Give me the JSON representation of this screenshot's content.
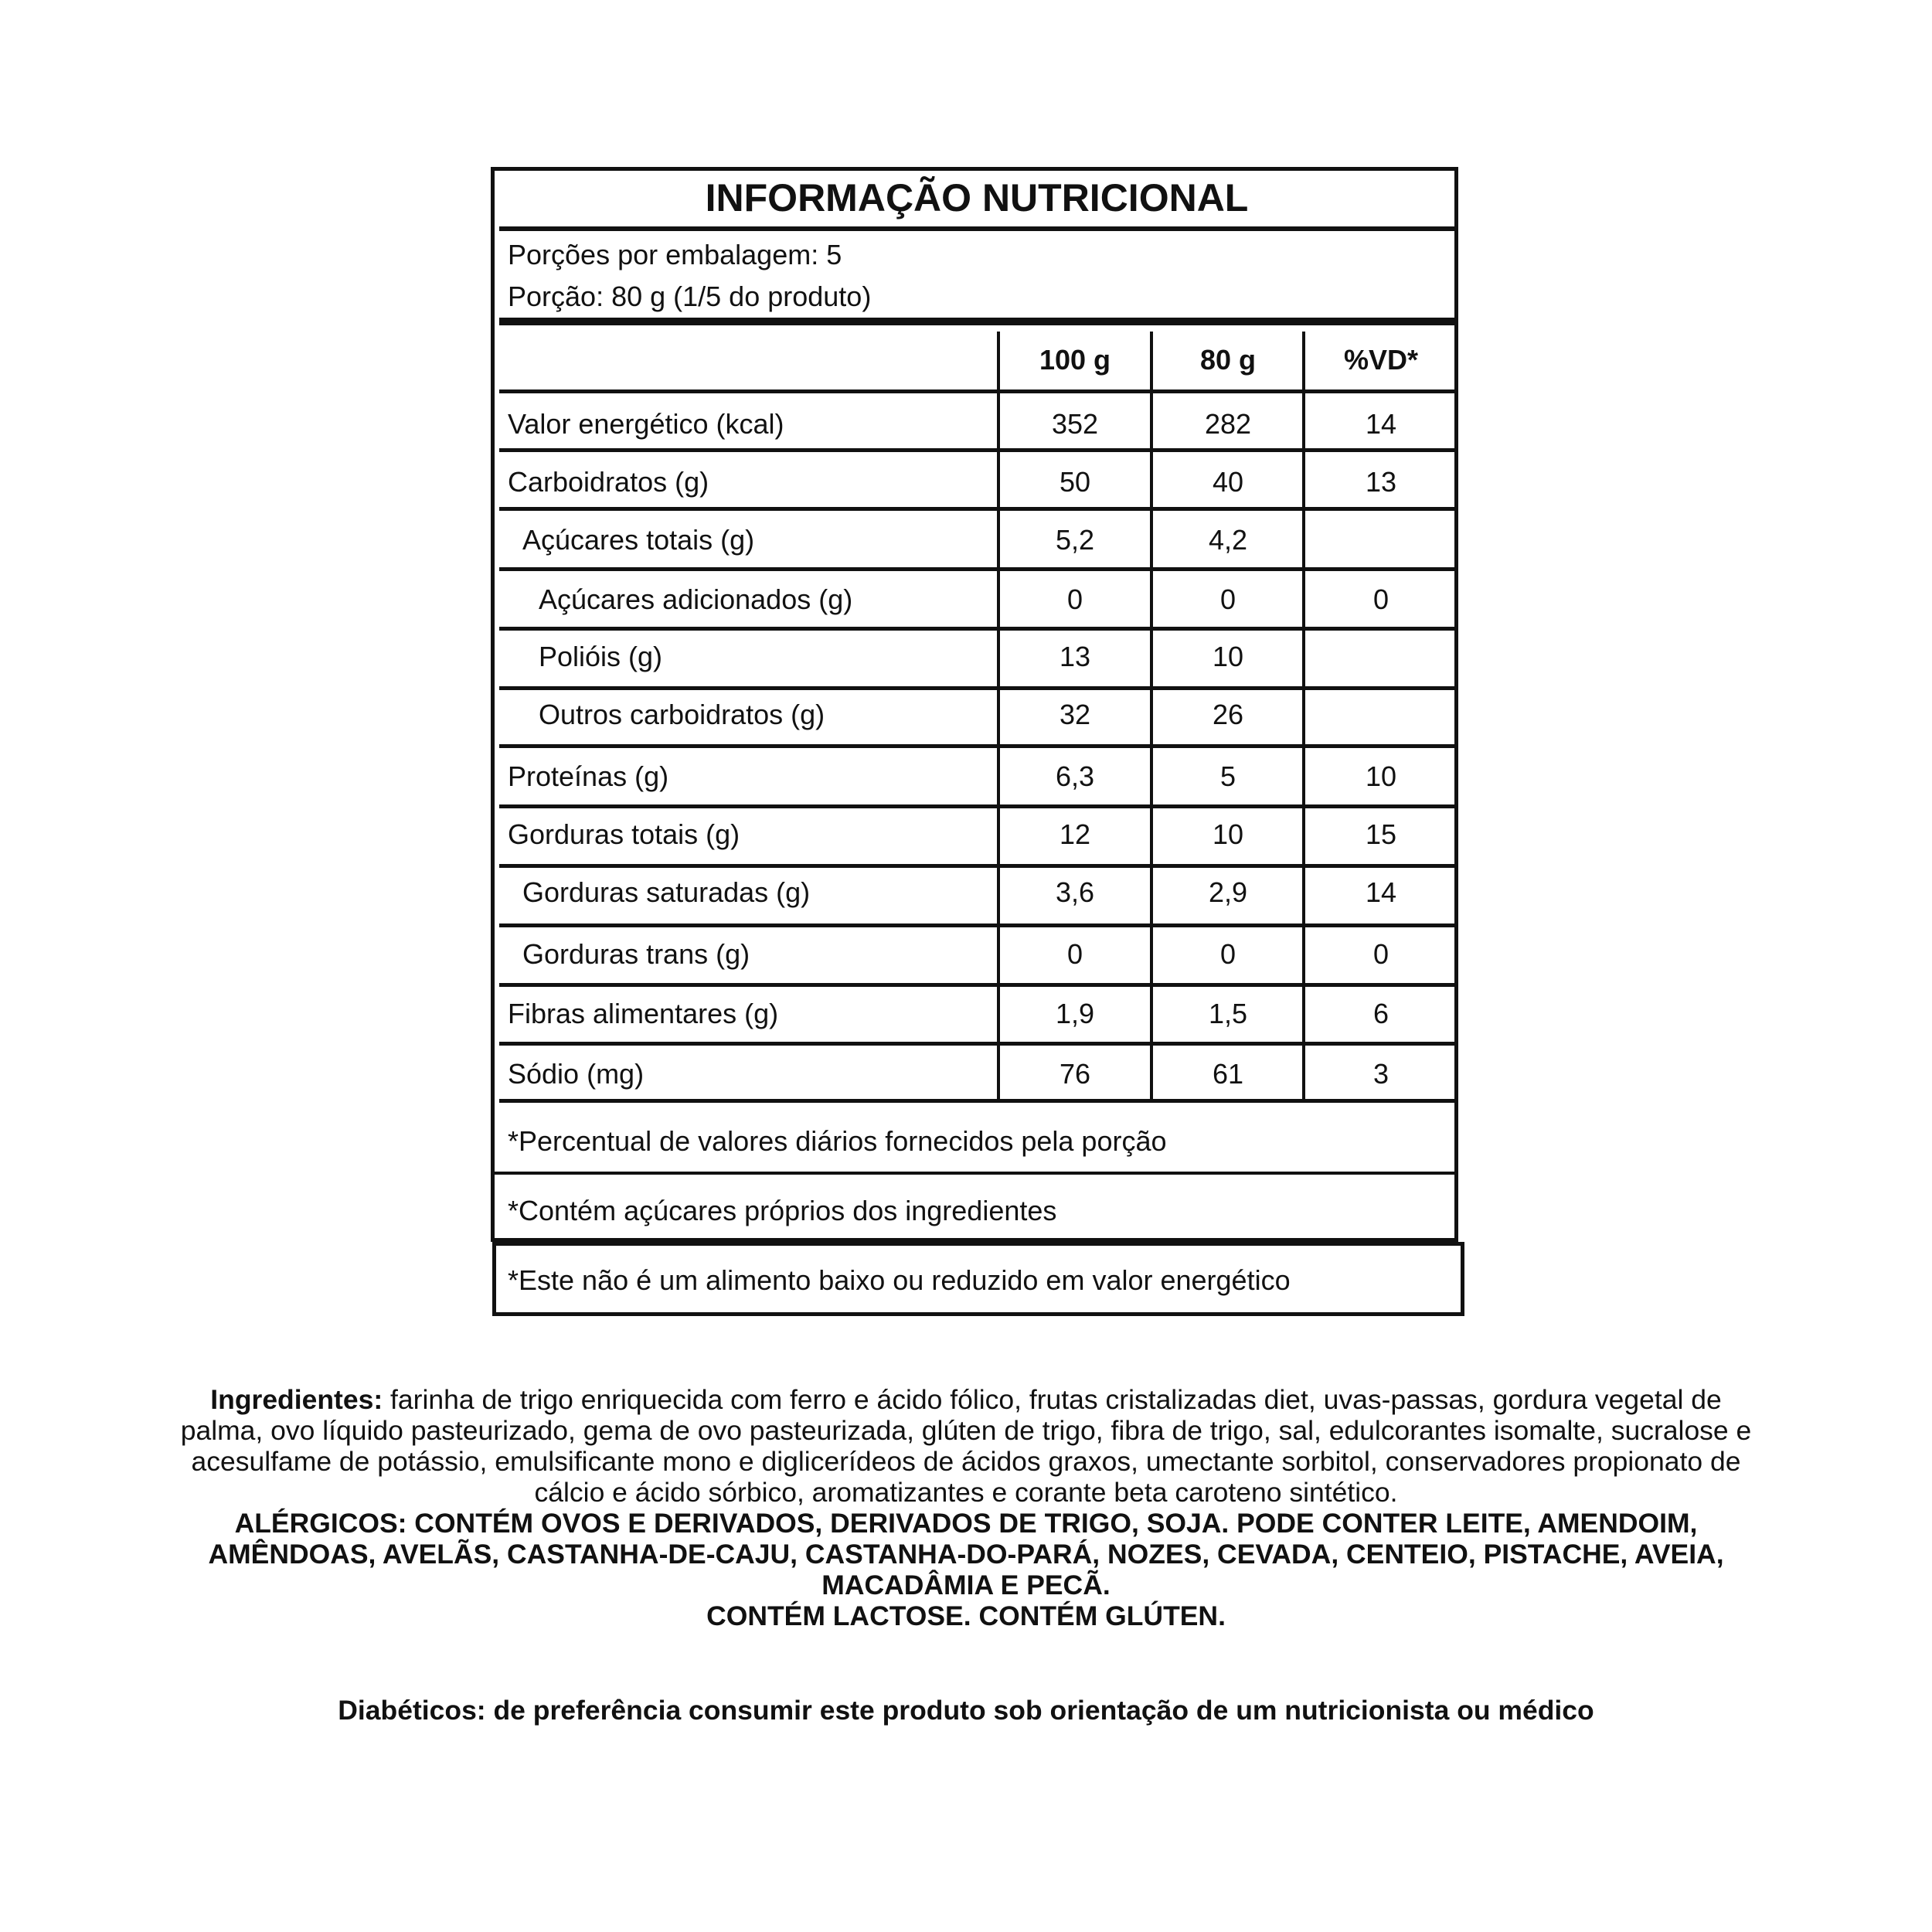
{
  "table": {
    "title": "INFORMAÇÃO NUTRICIONAL",
    "servings_per_package": "Porções por embalagem: 5",
    "serving_size": "Porção: 80 g (1/5 do produto)",
    "columns": [
      "100 g",
      "80 g",
      "%VD*"
    ],
    "rows": [
      {
        "label": "Valor energético (kcal)",
        "indent": 0,
        "values": [
          "352",
          "282",
          "14"
        ]
      },
      {
        "label": "Carboidratos (g)",
        "indent": 0,
        "values": [
          "50",
          "40",
          "13"
        ]
      },
      {
        "label": "Açúcares totais (g)",
        "indent": 1,
        "values": [
          "5,2",
          "4,2",
          ""
        ]
      },
      {
        "label": "Açúcares adicionados (g)",
        "indent": 2,
        "values": [
          "0",
          "0",
          "0"
        ]
      },
      {
        "label": "Polióis (g)",
        "indent": 2,
        "values": [
          "13",
          "10",
          ""
        ]
      },
      {
        "label": "Outros carboidratos (g)",
        "indent": 2,
        "values": [
          "32",
          "26",
          ""
        ]
      },
      {
        "label": "Proteínas (g)",
        "indent": 0,
        "values": [
          "6,3",
          "5",
          "10"
        ]
      },
      {
        "label": "Gorduras totais (g)",
        "indent": 0,
        "values": [
          "12",
          "10",
          "15"
        ]
      },
      {
        "label": "Gorduras saturadas (g)",
        "indent": 1,
        "values": [
          "3,6",
          "2,9",
          "14"
        ]
      },
      {
        "label": "Gorduras trans (g)",
        "indent": 1,
        "values": [
          "0",
          "0",
          "0"
        ]
      },
      {
        "label": "Fibras alimentares (g)",
        "indent": 0,
        "values": [
          "1,9",
          "1,5",
          "6"
        ]
      },
      {
        "label": "Sódio (mg)",
        "indent": 0,
        "values": [
          "76",
          "61",
          "3"
        ]
      }
    ],
    "footnotes": [
      "*Percentual de valores diários fornecidos pela porção",
      "*Contém açúcares próprios dos ingredientes",
      "*Este não é um alimento baixo ou reduzido em valor energético"
    ]
  },
  "ingredients": {
    "label": "Ingredientes:",
    "lines": [
      " farinha de trigo enriquecida com ferro e ácido fólico, frutas cristalizadas diet, uvas-passas, gordura vegetal de",
      "palma, ovo líquido pasteurizado, gema de ovo pasteurizada, glúten de trigo, fibra de trigo, sal, edulcorantes isomalte, sucralose e",
      "acesulfame de potássio, emulsificante mono e diglicerídeos de ácidos graxos, umectante sorbitol, conservadores propionato de",
      "cálcio e ácido sórbico, aromatizantes e corante beta caroteno sintético."
    ]
  },
  "allergens": {
    "lines": [
      "ALÉRGICOS: CONTÉM OVOS E DERIVADOS, DERIVADOS DE TRIGO, SOJA. PODE CONTER LEITE, AMENDOIM,",
      "AMÊNDOAS, AVELÃS, CASTANHA-DE-CAJU, CASTANHA-DO-PARÁ, NOZES, CEVADA, CENTEIO, PISTACHE, AVEIA,",
      "MACADÂMIA E PECÃ.",
      "CONTÉM LACTOSE. CONTÉM GLÚTEN."
    ]
  },
  "diabetics_note": "Diabéticos: de preferência consumir este produto sob orientação de um nutricionista ou médico"
}
